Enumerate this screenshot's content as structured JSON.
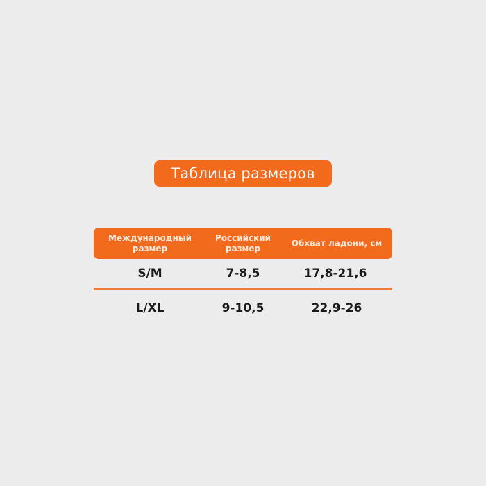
{
  "title": "Таблица размеров",
  "colors": {
    "accent": "#f26a1b",
    "background": "#ececec"
  },
  "table": {
    "headers": [
      "Международный размер",
      "Российский размер",
      "Обхват ладони, см"
    ],
    "header_lines": [
      [
        "Международный",
        "размер"
      ],
      [
        "Российский",
        "размер"
      ],
      [
        "Обхват ладони, см"
      ]
    ],
    "rows": [
      [
        "S/M",
        "7-8,5",
        "17,8-21,6"
      ],
      [
        "L/XL",
        "9-10,5",
        "22,9-26"
      ]
    ]
  }
}
